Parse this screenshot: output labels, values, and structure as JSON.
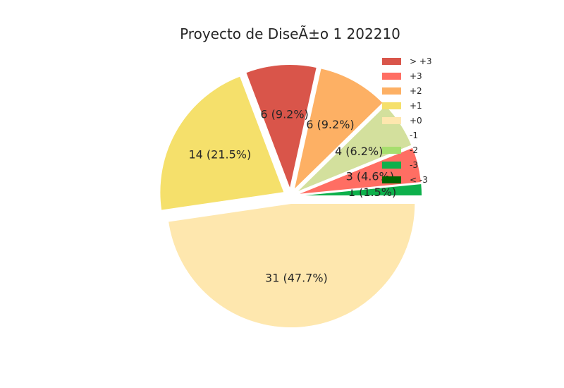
{
  "chart_data": {
    "type": "pie",
    "title": "Proyecto de DiseÃ±o 1 202210",
    "slices": [
      {
        "label": "-3",
        "value": 1,
        "pct_label": "1 (1.5%)",
        "color": "#0db04b"
      },
      {
        "label": "+3",
        "value": 3,
        "pct_label": "3 (4.6%)",
        "color": "#ff6e63"
      },
      {
        "label": "-1",
        "value": 4,
        "pct_label": "4 (6.2%)",
        "color": "#d3e09d"
      },
      {
        "label": "+2",
        "value": 6,
        "pct_label": "6 (9.2%)",
        "color": "#fdb064"
      },
      {
        "label": "> +3",
        "value": 6,
        "pct_label": "6 (9.2%)",
        "color": "#d9554a"
      },
      {
        "label": "+1",
        "value": 14,
        "pct_label": "14 (21.5%)",
        "color": "#f5e06b"
      },
      {
        "label": "+0",
        "value": 31,
        "pct_label": "31 (47.7%)",
        "color": "#fee7ae"
      }
    ],
    "legend": [
      {
        "label": "> +3",
        "color": "#d9554a"
      },
      {
        "label": "+3",
        "color": "#ff6e63"
      },
      {
        "label": "+2",
        "color": "#fdb064"
      },
      {
        "label": "+1",
        "color": "#f5e06b"
      },
      {
        "label": "+0",
        "color": "#fee7ae"
      },
      {
        "label": "-1",
        "color": "#d3e09d"
      },
      {
        "label": "-2",
        "color": "#a6de6e"
      },
      {
        "label": "-3",
        "color": "#0db04b"
      },
      {
        "label": "< -3",
        "color": "#006400"
      }
    ],
    "legend_position": "top-right"
  }
}
